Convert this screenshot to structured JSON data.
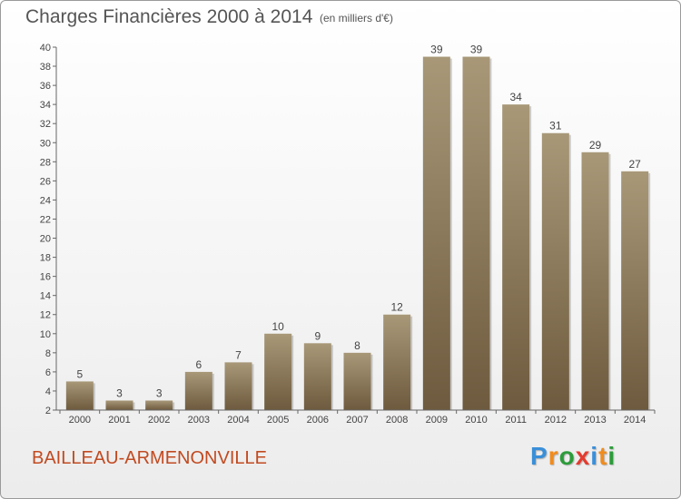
{
  "header": {
    "title": "Charges Financières 2000 à 2014",
    "subtitle": "(en milliers d'€)"
  },
  "footer": {
    "commune": "BAILLEAU-ARMENONVILLE",
    "logo": "Proxiti",
    "logo_colors": [
      "#3a8fd8",
      "#f08c1e",
      "#2c9c3a",
      "#e63a2e",
      "#3a8fd8",
      "#f08c1e",
      "#2c9c3a"
    ]
  },
  "colors": {
    "bar_top": "#a89878",
    "bar_bottom": "#6e5a3e",
    "axis": "#666666",
    "grid": "#dddddd",
    "text": "#444444"
  },
  "chart_data": {
    "type": "bar",
    "title": "Charges Financières 2000 à 2014",
    "subtitle": "(en milliers d'€)",
    "categories": [
      "2000",
      "2001",
      "2002",
      "2003",
      "2004",
      "2005",
      "2006",
      "2007",
      "2008",
      "2009",
      "2010",
      "2011",
      "2012",
      "2013",
      "2014"
    ],
    "values": [
      5,
      3,
      3,
      6,
      7,
      10,
      9,
      8,
      12,
      39,
      39,
      34,
      31,
      29,
      27
    ],
    "ylim": [
      2,
      40
    ],
    "ytick_step": 2,
    "grid": false,
    "data_labels": true
  }
}
